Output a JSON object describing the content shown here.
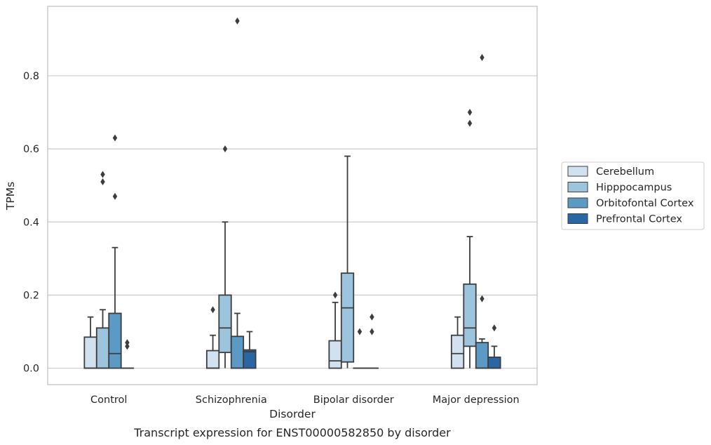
{
  "chart_data": {
    "type": "box",
    "title": "",
    "caption": "Transcript expression for ENST00000582850 by disorder",
    "xlabel": "Disorder",
    "ylabel": "TPMs",
    "ylim": [
      -0.045,
      0.99
    ],
    "yticks": [
      0.0,
      0.2,
      0.4,
      0.6,
      0.8
    ],
    "ytick_labels": [
      "0.0",
      "0.2",
      "0.4",
      "0.6",
      "0.8"
    ],
    "grid": "horizontal",
    "legend_position": "right",
    "categories": [
      "Control",
      "Schizophrenia",
      "Bipolar disorder",
      "Major depression"
    ],
    "series": [
      {
        "name": "Cerebellum",
        "color": "#d2e1f0",
        "boxes": [
          {
            "whislo": 0.0,
            "q1": 0.0,
            "med": 0.0,
            "q3": 0.085,
            "whishi": 0.14,
            "fliers": []
          },
          {
            "whislo": 0.0,
            "q1": 0.0,
            "med": 0.0,
            "q3": 0.048,
            "whishi": 0.09,
            "fliers": [
              0.16
            ]
          },
          {
            "whislo": 0.0,
            "q1": 0.0,
            "med": 0.02,
            "q3": 0.075,
            "whishi": 0.18,
            "fliers": [
              0.2
            ]
          },
          {
            "whislo": 0.0,
            "q1": 0.0,
            "med": 0.04,
            "q3": 0.09,
            "whishi": 0.14,
            "fliers": []
          }
        ]
      },
      {
        "name": "Hipppocampus",
        "color": "#9cc4dd",
        "boxes": [
          {
            "whislo": 0.0,
            "q1": 0.0,
            "med": 0.0,
            "q3": 0.11,
            "whishi": 0.16,
            "fliers": [
              0.51,
              0.53
            ]
          },
          {
            "whislo": 0.0,
            "q1": 0.043,
            "med": 0.11,
            "q3": 0.2,
            "whishi": 0.4,
            "fliers": [
              0.6
            ]
          },
          {
            "whislo": 0.0,
            "q1": 0.017,
            "med": 0.165,
            "q3": 0.26,
            "whishi": 0.58,
            "fliers": []
          },
          {
            "whislo": 0.0,
            "q1": 0.06,
            "med": 0.11,
            "q3": 0.23,
            "whishi": 0.36,
            "fliers": [
              0.67,
              0.7
            ]
          }
        ]
      },
      {
        "name": "Orbitofontal Cortex",
        "color": "#5a9ac5",
        "boxes": [
          {
            "whislo": 0.0,
            "q1": 0.0,
            "med": 0.04,
            "q3": 0.15,
            "whishi": 0.33,
            "fliers": [
              0.47,
              0.63
            ]
          },
          {
            "whislo": 0.0,
            "q1": 0.0,
            "med": 0.0,
            "q3": 0.087,
            "whishi": 0.15,
            "fliers": [
              0.95
            ]
          },
          {
            "whislo": 0.0,
            "q1": 0.0,
            "med": 0.0,
            "q3": 0.0,
            "whishi": 0.0,
            "fliers": [
              0.1
            ]
          },
          {
            "whislo": 0.0,
            "q1": 0.0,
            "med": 0.0,
            "q3": 0.07,
            "whishi": 0.08,
            "fliers": [
              0.19,
              0.85
            ]
          }
        ]
      },
      {
        "name": "Prefrontal Cortex",
        "color": "#2967a3",
        "boxes": [
          {
            "whislo": 0.0,
            "q1": 0.0,
            "med": 0.0,
            "q3": 0.0,
            "whishi": 0.0,
            "fliers": [
              0.06,
              0.07
            ]
          },
          {
            "whislo": 0.0,
            "q1": 0.0,
            "med": 0.045,
            "q3": 0.05,
            "whishi": 0.1,
            "fliers": []
          },
          {
            "whislo": 0.0,
            "q1": 0.0,
            "med": 0.0,
            "q3": 0.0,
            "whishi": 0.0,
            "fliers": [
              0.1,
              0.14
            ]
          },
          {
            "whislo": 0.0,
            "q1": 0.0,
            "med": 0.0,
            "q3": 0.03,
            "whishi": 0.06,
            "fliers": [
              0.11
            ]
          }
        ]
      }
    ]
  }
}
